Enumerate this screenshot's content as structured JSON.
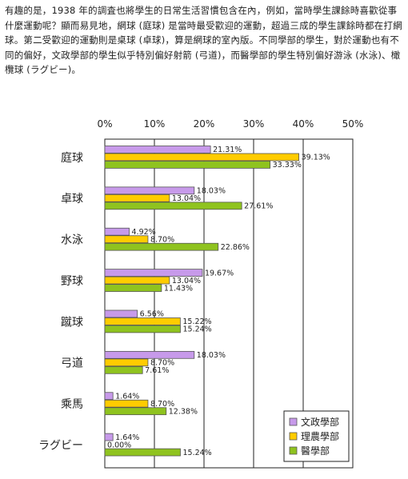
{
  "intro_text": "有趣的是，1938 年的調査也將學生的日常生活習慣包含在內，例如，當時學生課餘時喜歡從事什麼運動呢？顯而易見地，網球 (庭球) 是當時最受歡迎的運動，超過三成的學生課餘時都在打網球。第二受歡迎的運動則是桌球 (卓球)，算是網球的室內版。不同學部的學生，對於運動也有不同的偏好，文政學部的學生似乎特別偏好射箭 (弓道)，而醫學部的學生特別偏好游泳 (水泳)、橄欖球 (ラグビー)。",
  "colors": {
    "series": [
      "#c79aea",
      "#ffcc00",
      "#8fc31f"
    ],
    "bar_outline": "#555555",
    "grid": "#222222",
    "text": "#222222"
  },
  "chart_data": {
    "type": "bar",
    "orientation": "horizontal",
    "categories": [
      "庭球",
      "卓球",
      "水泳",
      "野球",
      "蹴球",
      "弓道",
      "乘馬",
      "ラグビー"
    ],
    "series": [
      {
        "name": "文政學部",
        "values": [
          21.31,
          18.03,
          4.92,
          19.67,
          6.56,
          18.03,
          1.64,
          1.64
        ]
      },
      {
        "name": "理農學部",
        "values": [
          39.13,
          13.04,
          8.7,
          13.04,
          15.22,
          8.7,
          8.7,
          0.0
        ]
      },
      {
        "name": "醫學部",
        "values": [
          33.33,
          27.61,
          22.86,
          11.43,
          15.24,
          7.61,
          12.38,
          15.24
        ]
      }
    ],
    "value_labels": [
      [
        "21.31%",
        "18.03%",
        "4.92%",
        "19.67%",
        "6.56%",
        "18.03%",
        "1.64%",
        "1.64%"
      ],
      [
        "39.13%",
        "13.04%",
        "8.70%",
        "13.04%",
        "15.22%",
        "8.70%",
        "8.70%",
        "0.00%"
      ],
      [
        "33.33%",
        "27.61%",
        "22.86%",
        "11.43%",
        "15.24%",
        "7.61%",
        "12.38%",
        "15.24%"
      ]
    ],
    "xlim": [
      0,
      50
    ],
    "ticks": [
      0,
      10,
      20,
      30,
      40,
      50
    ],
    "tick_labels": [
      "0%",
      "10%",
      "20%",
      "30%",
      "40%",
      "50%"
    ],
    "grid": true,
    "legend_position": "bottom-right"
  }
}
